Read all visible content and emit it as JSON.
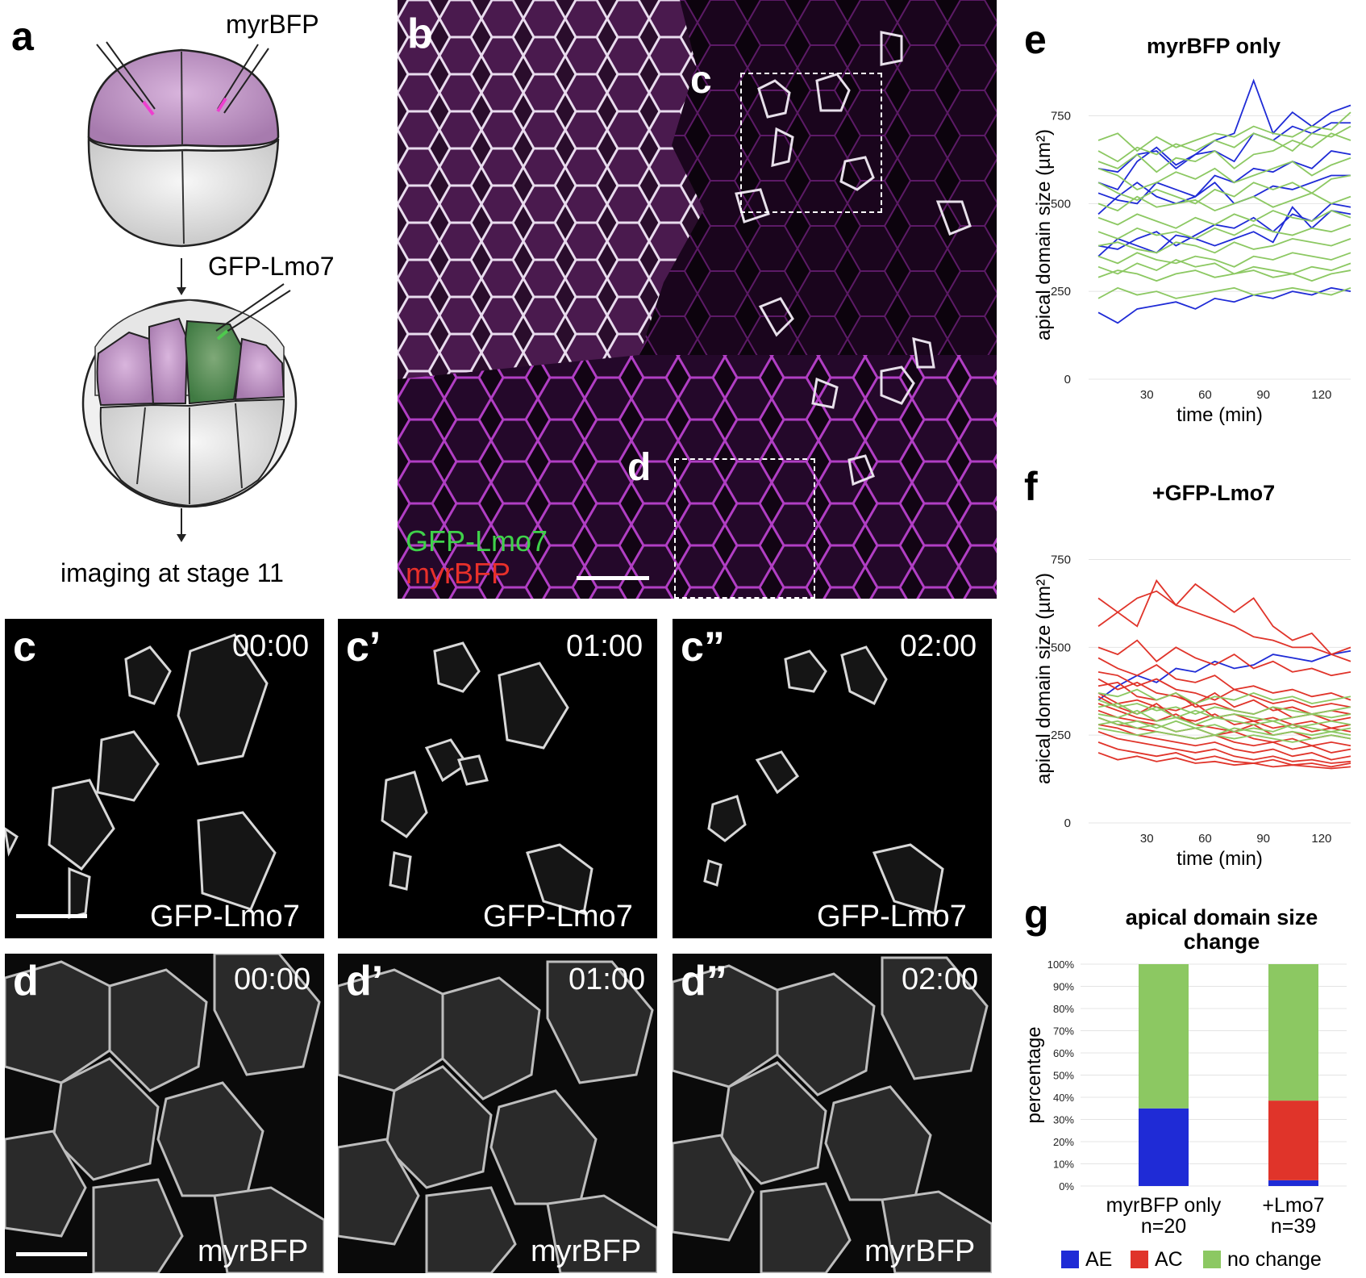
{
  "panel_a": {
    "label": "a",
    "injection_1": "myrBFP",
    "injection_2": "GFP-Lmo7",
    "caption": "imaging at stage 11"
  },
  "panel_b": {
    "label": "b",
    "box_c": "c",
    "box_d": "d",
    "channel_1": "GFP-Lmo7",
    "channel_2": "myrBFP"
  },
  "panel_c": {
    "frames": [
      {
        "label": "c",
        "time": "00:00",
        "channel": "GFP-Lmo7"
      },
      {
        "label": "c’",
        "time": "01:00",
        "channel": "GFP-Lmo7"
      },
      {
        "label": "c”",
        "time": "02:00",
        "channel": "GFP-Lmo7"
      }
    ]
  },
  "panel_d": {
    "frames": [
      {
        "label": "d",
        "time": "00:00",
        "channel": "myrBFP"
      },
      {
        "label": "d’",
        "time": "01:00",
        "channel": "myrBFP"
      },
      {
        "label": "d”",
        "time": "02:00",
        "channel": "myrBFP"
      }
    ]
  },
  "colors": {
    "AE": "#1f2bd6",
    "AC": "#e0342a",
    "no_change": "#8cc862",
    "magenta": "#b23fc0",
    "green": "#39c639"
  },
  "chart_data": [
    {
      "panel": "e",
      "type": "line",
      "title": "myrBFP only",
      "xlabel": "time (min)",
      "ylabel": "apical domain size (µm²)",
      "xlim": [
        0,
        135
      ],
      "ylim": [
        0,
        850
      ],
      "xticks": [
        30,
        60,
        90,
        120
      ],
      "yticks": [
        0,
        250,
        500,
        750
      ],
      "x": [
        5,
        15,
        25,
        35,
        45,
        55,
        65,
        75,
        85,
        95,
        105,
        115,
        125,
        135
      ],
      "series": [
        {
          "name": "AE",
          "values": [
            600,
            590,
            640,
            650,
            600,
            640,
            650,
            620,
            700,
            680,
            720,
            700,
            730,
            730
          ]
        },
        {
          "name": "AE",
          "values": [
            560,
            540,
            620,
            660,
            610,
            640,
            680,
            700,
            850,
            700,
            760,
            720,
            760,
            780
          ]
        },
        {
          "name": "AE",
          "values": [
            530,
            510,
            500,
            560,
            540,
            520,
            580,
            560,
            600,
            590,
            620,
            600,
            650,
            640
          ]
        },
        {
          "name": "AE",
          "values": [
            470,
            520,
            560,
            520,
            500,
            520,
            560,
            500,
            520,
            550,
            540,
            560,
            580,
            580
          ]
        },
        {
          "name": "AE",
          "values": [
            380,
            370,
            400,
            420,
            380,
            410,
            440,
            430,
            460,
            420,
            470,
            450,
            500,
            490
          ]
        },
        {
          "name": "AE",
          "values": [
            350,
            400,
            380,
            360,
            410,
            400,
            380,
            400,
            420,
            390,
            490,
            430,
            480,
            470
          ]
        },
        {
          "name": "AE",
          "values": [
            190,
            160,
            200,
            210,
            220,
            200,
            230,
            220,
            240,
            230,
            250,
            240,
            260,
            250
          ]
        },
        {
          "name": "no change",
          "values": [
            680,
            700,
            650,
            690,
            660,
            680,
            700,
            690,
            720,
            700,
            690,
            720,
            710,
            760
          ]
        },
        {
          "name": "no change",
          "values": [
            650,
            620,
            660,
            640,
            670,
            650,
            680,
            660,
            700,
            680,
            650,
            700,
            690,
            720
          ]
        },
        {
          "name": "no change",
          "values": [
            620,
            600,
            640,
            590,
            630,
            620,
            650,
            600,
            640,
            650,
            680,
            660,
            700,
            680
          ]
        },
        {
          "name": "no change",
          "values": [
            600,
            580,
            540,
            560,
            590,
            570,
            600,
            560,
            580,
            600,
            620,
            580,
            610,
            630
          ]
        },
        {
          "name": "no change",
          "values": [
            560,
            530,
            510,
            540,
            520,
            500,
            540,
            520,
            560,
            540,
            560,
            530,
            570,
            580
          ]
        },
        {
          "name": "no change",
          "values": [
            500,
            480,
            520,
            490,
            500,
            510,
            480,
            500,
            520,
            490,
            510,
            530,
            500,
            520
          ]
        },
        {
          "name": "no change",
          "values": [
            460,
            440,
            470,
            450,
            430,
            460,
            440,
            470,
            450,
            480,
            460,
            450,
            480,
            460
          ]
        },
        {
          "name": "no change",
          "values": [
            420,
            400,
            430,
            410,
            420,
            400,
            430,
            410,
            440,
            420,
            410,
            430,
            420,
            440
          ]
        },
        {
          "name": "no change",
          "values": [
            380,
            390,
            370,
            360,
            390,
            380,
            360,
            390,
            370,
            380,
            400,
            390,
            380,
            400
          ]
        },
        {
          "name": "no change",
          "values": [
            350,
            330,
            360,
            340,
            330,
            350,
            340,
            320,
            350,
            340,
            360,
            350,
            340,
            360
          ]
        },
        {
          "name": "no change",
          "values": [
            320,
            300,
            330,
            310,
            340,
            320,
            330,
            300,
            320,
            310,
            300,
            320,
            310,
            330
          ]
        },
        {
          "name": "no change",
          "values": [
            290,
            310,
            300,
            280,
            300,
            310,
            290,
            300,
            310,
            290,
            300,
            280,
            300,
            310
          ]
        },
        {
          "name": "no change",
          "values": [
            230,
            260,
            240,
            250,
            230,
            240,
            250,
            260,
            240,
            250,
            260,
            250,
            240,
            260
          ]
        }
      ]
    },
    {
      "panel": "f",
      "type": "line",
      "title": "+GFP-Lmo7",
      "xlabel": "time (min)",
      "ylabel": "apical domain size (µm²)",
      "xlim": [
        0,
        135
      ],
      "ylim": [
        0,
        850
      ],
      "xticks": [
        30,
        60,
        90,
        120
      ],
      "yticks": [
        0,
        250,
        500,
        750
      ],
      "x": [
        5,
        15,
        25,
        35,
        45,
        55,
        65,
        75,
        85,
        95,
        105,
        115,
        125,
        135
      ],
      "series": [
        {
          "name": "AE",
          "values": [
            350,
            390,
            420,
            400,
            440,
            430,
            460,
            440,
            450,
            480,
            470,
            460,
            480,
            490
          ]
        },
        {
          "name": "AC",
          "values": [
            640,
            600,
            560,
            690,
            620,
            680,
            640,
            600,
            640,
            560,
            520,
            540,
            480,
            500
          ]
        },
        {
          "name": "AC",
          "values": [
            560,
            600,
            640,
            660,
            620,
            600,
            580,
            560,
            530,
            520,
            500,
            500,
            480,
            460
          ]
        },
        {
          "name": "AC",
          "values": [
            500,
            480,
            520,
            460,
            500,
            470,
            450,
            480,
            440,
            460,
            430,
            440,
            420,
            430
          ]
        },
        {
          "name": "AC",
          "values": [
            470,
            440,
            420,
            450,
            410,
            400,
            420,
            380,
            390,
            370,
            380,
            360,
            370,
            350
          ]
        },
        {
          "name": "AC",
          "values": [
            430,
            420,
            390,
            410,
            380,
            370,
            350,
            380,
            360,
            340,
            350,
            330,
            340,
            330
          ]
        },
        {
          "name": "AC",
          "values": [
            410,
            380,
            400,
            370,
            360,
            340,
            370,
            330,
            350,
            320,
            330,
            310,
            320,
            310
          ]
        },
        {
          "name": "AC",
          "values": [
            390,
            400,
            360,
            350,
            370,
            330,
            340,
            320,
            310,
            330,
            300,
            310,
            290,
            300
          ]
        },
        {
          "name": "AC",
          "values": [
            370,
            340,
            350,
            330,
            320,
            340,
            300,
            310,
            290,
            300,
            280,
            290,
            270,
            280
          ]
        },
        {
          "name": "AC",
          "values": [
            360,
            330,
            310,
            340,
            300,
            290,
            310,
            280,
            290,
            270,
            280,
            260,
            270,
            260
          ]
        },
        {
          "name": "AC",
          "values": [
            340,
            320,
            300,
            290,
            310,
            280,
            270,
            260,
            280,
            250,
            260,
            240,
            250,
            240
          ]
        },
        {
          "name": "AC",
          "values": [
            320,
            300,
            290,
            280,
            260,
            270,
            250,
            260,
            240,
            230,
            240,
            220,
            230,
            220
          ]
        },
        {
          "name": "AC",
          "values": [
            300,
            280,
            270,
            260,
            250,
            240,
            250,
            230,
            220,
            230,
            210,
            220,
            200,
            210
          ]
        },
        {
          "name": "AC",
          "values": [
            280,
            270,
            250,
            240,
            230,
            220,
            230,
            210,
            200,
            210,
            190,
            200,
            180,
            190
          ]
        },
        {
          "name": "AC",
          "values": [
            260,
            240,
            230,
            220,
            210,
            200,
            210,
            190,
            180,
            190,
            175,
            180,
            170,
            175
          ]
        },
        {
          "name": "AC",
          "values": [
            230,
            210,
            200,
            190,
            200,
            180,
            190,
            175,
            170,
            180,
            165,
            170,
            160,
            170
          ]
        },
        {
          "name": "AC",
          "values": [
            200,
            180,
            190,
            175,
            185,
            170,
            175,
            165,
            170,
            160,
            165,
            160,
            155,
            160
          ]
        },
        {
          "name": "no change",
          "values": [
            370,
            360,
            380,
            350,
            370,
            340,
            360,
            350,
            370,
            350,
            360,
            340,
            350,
            360
          ]
        },
        {
          "name": "no change",
          "values": [
            350,
            330,
            340,
            320,
            330,
            310,
            330,
            320,
            310,
            330,
            320,
            310,
            320,
            330
          ]
        },
        {
          "name": "no change",
          "values": [
            330,
            340,
            310,
            330,
            300,
            320,
            300,
            310,
            300,
            290,
            300,
            310,
            300,
            310
          ]
        },
        {
          "name": "no change",
          "values": [
            310,
            300,
            320,
            290,
            300,
            280,
            300,
            290,
            280,
            290,
            270,
            280,
            290,
            280
          ]
        },
        {
          "name": "no change",
          "values": [
            300,
            280,
            290,
            270,
            290,
            270,
            280,
            260,
            270,
            260,
            280,
            270,
            260,
            270
          ]
        },
        {
          "name": "no change",
          "values": [
            280,
            290,
            270,
            280,
            260,
            270,
            250,
            270,
            260,
            250,
            260,
            250,
            260,
            250
          ]
        },
        {
          "name": "no change",
          "values": [
            270,
            260,
            250,
            260,
            250,
            240,
            250,
            240,
            250,
            240,
            230,
            240,
            250,
            240
          ]
        }
      ]
    },
    {
      "panel": "g",
      "type": "bar",
      "stacked": true,
      "title": "apical domain size change",
      "ylabel": "percentage",
      "ylim": [
        0,
        100
      ],
      "yticks": [
        "0%",
        "10%",
        "20%",
        "30%",
        "40%",
        "50%",
        "60%",
        "70%",
        "80%",
        "90%",
        "100%"
      ],
      "categories": [
        "myrBFP only",
        "+Lmo7"
      ],
      "category_n": [
        "n=20",
        "n=39"
      ],
      "series": [
        {
          "name": "AE",
          "values": [
            35,
            2.6
          ]
        },
        {
          "name": "AC",
          "values": [
            0,
            35.9
          ]
        },
        {
          "name": "no change",
          "values": [
            65,
            61.5
          ]
        }
      ],
      "legend": [
        "AE",
        "AC",
        "no change"
      ]
    }
  ]
}
